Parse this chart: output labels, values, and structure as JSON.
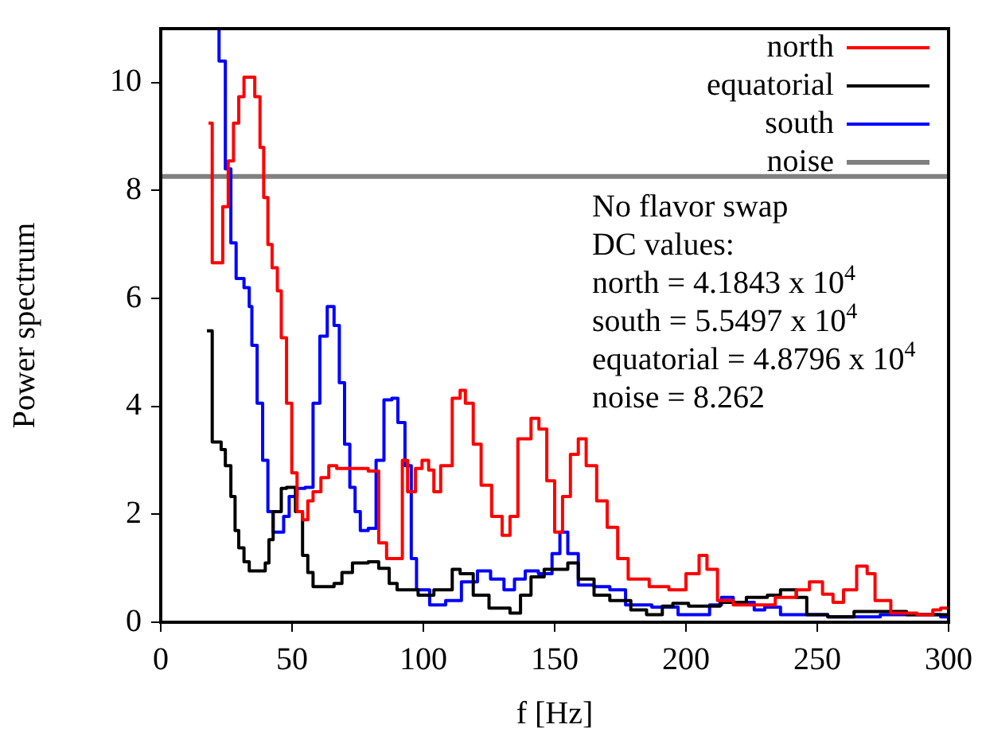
{
  "chart_data": {
    "type": "step",
    "xlabel": "f [Hz]",
    "ylabel": "Power spectrum",
    "xlim": [
      0,
      300
    ],
    "xticks": [
      0,
      50,
      100,
      150,
      200,
      250,
      300
    ],
    "ylim": [
      0,
      11
    ],
    "yticks": [
      0,
      2,
      4,
      6,
      8,
      10
    ],
    "grid": false,
    "legend": "top right",
    "marker": "none",
    "annotations": [
      "No flavor swap",
      "DC values:",
      "north = 4.1843 x 10$^{4}$",
      "south = 5.5497 x 10$^{4}$",
      "equatorial = 4.8796 x 10$^{4}$",
      "noise = 8.262"
    ],
    "series": [
      {
        "name": "north",
        "color": "#ff0000",
        "x": [
          18.2,
          19.6,
          23.6,
          25.7,
          27.7,
          29.7,
          31.7,
          35.8,
          37.8,
          39.2,
          40.8,
          42.4,
          44.4,
          45.9,
          47.9,
          49.9,
          51.9,
          54,
          56,
          58,
          61,
          64,
          67,
          71,
          79,
          83,
          86,
          89,
          92,
          94,
          97,
          99.5,
          102,
          104,
          106.6,
          111,
          114,
          116,
          119,
          122,
          126,
          130,
          133,
          136,
          141,
          144,
          147,
          150,
          153,
          156,
          159,
          162,
          166,
          170,
          174,
          178,
          186,
          193.5,
          200,
          205,
          208,
          212,
          218,
          234,
          242,
          247,
          252,
          256,
          260,
          265,
          269,
          272,
          278,
          288,
          294,
          297,
          300
        ],
        "values": [
          9.25,
          6.66,
          7.7,
          8.55,
          9.25,
          9.74,
          10.1,
          9.74,
          8.8,
          7.87,
          7.0,
          6.57,
          6.14,
          5.27,
          4.06,
          2.77,
          2.05,
          1.9,
          2.25,
          2.42,
          2.68,
          2.9,
          2.85,
          2.85,
          2.8,
          1.47,
          1.18,
          1.18,
          3.0,
          2.42,
          2.85,
          3.0,
          2.82,
          2.42,
          2.9,
          4.15,
          4.3,
          4.06,
          3.3,
          2.54,
          1.96,
          1.61,
          1.96,
          3.4,
          3.78,
          3.58,
          2.62,
          1.67,
          2.33,
          3.11,
          3.4,
          2.9,
          2.25,
          1.76,
          1.18,
          0.8,
          0.66,
          0.6,
          0.9,
          1.24,
          0.98,
          0.4,
          0.32,
          0.46,
          0.6,
          0.75,
          0.52,
          0.37,
          0.6,
          1.04,
          0.9,
          0.4,
          0.17,
          0.14,
          0.23,
          0.26,
          0.26
        ]
      },
      {
        "name": "equatorial",
        "color": "#000000",
        "x": [
          17.6,
          19.6,
          23,
          24.6,
          26.7,
          28.3,
          29.7,
          31.7,
          33.7,
          39.8,
          41.2,
          42.8,
          45.9,
          47.9,
          51.3,
          54,
          56,
          58,
          66,
          69,
          73,
          79,
          83,
          87,
          90,
          98,
          104,
          111,
          114,
          119,
          125,
          133,
          137,
          141,
          146,
          155,
          159,
          165,
          171,
          179,
          185,
          191,
          195,
          201,
          213,
          223,
          231,
          236,
          242,
          246,
          254,
          264,
          274,
          284,
          297,
          300
        ],
        "values": [
          5.4,
          3.34,
          3.2,
          2.9,
          2.33,
          1.7,
          1.38,
          1.12,
          0.95,
          1.1,
          1.53,
          2.05,
          2.48,
          2.5,
          2.05,
          1.24,
          0.92,
          0.66,
          0.72,
          0.92,
          1.1,
          1.12,
          1.0,
          0.72,
          0.6,
          0.5,
          0.6,
          0.98,
          0.9,
          0.5,
          0.26,
          0.17,
          0.5,
          0.84,
          0.98,
          1.1,
          0.8,
          0.5,
          0.4,
          0.23,
          0.14,
          0.3,
          0.35,
          0.3,
          0.37,
          0.46,
          0.5,
          0.6,
          0.46,
          0.14,
          0.1,
          0.2,
          0.2,
          0.14,
          0.14,
          0.14
        ]
      },
      {
        "name": "south",
        "color": "#0000ff",
        "x": [
          21.7,
          22.2,
          24.6,
          26.7,
          28.7,
          31.7,
          33.7,
          34.7,
          36.7,
          38.8,
          40.8,
          42.8,
          46.8,
          48.9,
          51.9,
          55,
          58,
          60.6,
          63.4,
          66,
          68,
          70,
          72,
          74,
          76,
          79,
          82,
          85,
          88,
          90.3,
          93,
          95.4,
          97.4,
          102.4,
          108.5,
          114.5,
          120.6,
          125.6,
          130.7,
          134.7,
          138.8,
          143.8,
          149,
          152,
          155,
          159,
          165,
          171,
          177,
          187,
          197,
          203,
          209,
          213.5,
          218,
          226,
          230,
          236,
          254,
          274,
          297,
          300
        ],
        "values": [
          11,
          10.4,
          8.4,
          7.03,
          6.37,
          6.2,
          5.85,
          5.13,
          4.06,
          3.0,
          2.05,
          1.67,
          1.96,
          2.33,
          2.48,
          2.5,
          4.06,
          5.3,
          5.85,
          5.5,
          4.44,
          3.3,
          2.5,
          2.05,
          1.7,
          1.74,
          3.0,
          4.12,
          4.15,
          3.7,
          2.9,
          1.18,
          0.6,
          0.32,
          0.4,
          0.75,
          0.95,
          0.8,
          0.6,
          0.8,
          0.95,
          0.9,
          1.27,
          1.67,
          1.27,
          0.69,
          0.66,
          0.6,
          0.32,
          0.28,
          0.14,
          0.14,
          0.32,
          0.46,
          0.37,
          0.23,
          0.28,
          0.14,
          0.1,
          0.14,
          0.1,
          0.1
        ]
      },
      {
        "name": "noise",
        "type": "line",
        "color": "#808080",
        "x": [
          0,
          300
        ],
        "values": [
          8.262,
          8.262
        ]
      }
    ]
  }
}
